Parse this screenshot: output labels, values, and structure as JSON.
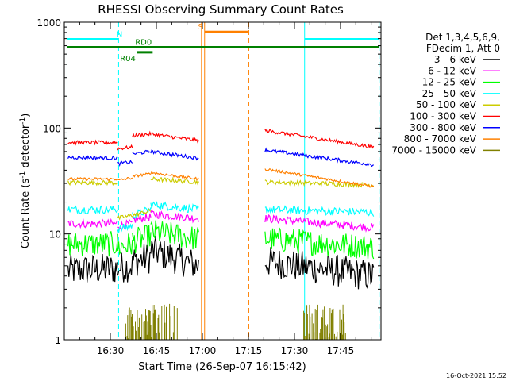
{
  "chart_data": {
    "type": "line",
    "title": "RHESSI Observing Summary Count Rates",
    "xlabel": "Start Time (26-Sep-07 16:15:42)",
    "ylabel_main": "Count Rate (s",
    "ylabel_sup1": "-1",
    "ylabel_mid": " detector",
    "ylabel_sup2": "-1",
    "ylabel_end": ")",
    "ylabel": "Count Rate (s-1 detector-1)",
    "y_scale": "log",
    "ylim": [
      1,
      1000
    ],
    "xlim_minutes": [
      16.25,
      17.97
    ],
    "x_ticks": [
      {
        "label": "16:30",
        "t": 16.5
      },
      {
        "label": "16:45",
        "t": 16.75
      },
      {
        "label": "17:00",
        "t": 17.0
      },
      {
        "label": "17:15",
        "t": 17.25
      },
      {
        "label": "17:30",
        "t": 17.5
      },
      {
        "label": "17:45",
        "t": 17.75
      }
    ],
    "y_ticks": [
      {
        "label": "1000",
        "v": 1000
      },
      {
        "label": "100",
        "v": 100
      },
      {
        "label": "10",
        "v": 10
      },
      {
        "label": "1",
        "v": 1
      }
    ],
    "legend": {
      "placement": "right",
      "header1": "Det 1,3,4,5,6,9,",
      "header2": "FDecim 1, Att 0",
      "entries": [
        {
          "label": "3 - 6 keV",
          "color": "#000000"
        },
        {
          "label": "6 - 12 keV",
          "color": "#ff00ff"
        },
        {
          "label": "12 - 25 keV",
          "color": "#00ff00"
        },
        {
          "label": "25 - 50 keV",
          "color": "#00ffff"
        },
        {
          "label": "50 - 100 keV",
          "color": "#cccc00"
        },
        {
          "label": "100 - 300 keV",
          "color": "#ff0000"
        },
        {
          "label": "300 - 800 keV",
          "color": "#0000ff"
        },
        {
          "label": "800 - 7000 keV",
          "color": "#ff8000"
        },
        {
          "label": "7000 - 15000 keV",
          "color": "#808000"
        }
      ]
    },
    "series": [
      {
        "name": "3 - 6 keV",
        "color": "#000000",
        "noise": 0.35,
        "segments": [
          {
            "t0": 16.27,
            "t1": 16.54,
            "v0": 4.5,
            "v1": 4.7
          },
          {
            "t0": 16.54,
            "t1": 16.62,
            "v0": 4.8,
            "v1": 5.0
          },
          {
            "t0": 16.62,
            "t1": 16.72,
            "v0": 5.5,
            "v1": 6.0
          },
          {
            "t0": 16.72,
            "t1": 16.98,
            "v0": 7.0,
            "v1": 5.0
          },
          {
            "t0": 17.34,
            "t1": 17.93,
            "v0": 5.5,
            "v1": 4.0
          }
        ]
      },
      {
        "name": "6 - 12 keV",
        "color": "#ff00ff",
        "noise": 0.09,
        "segments": [
          {
            "t0": 16.27,
            "t1": 16.54,
            "v0": 12.5,
            "v1": 12.5
          },
          {
            "t0": 16.54,
            "t1": 16.62,
            "v0": 12.0,
            "v1": 12.5
          },
          {
            "t0": 16.62,
            "t1": 16.72,
            "v0": 13.5,
            "v1": 14.5
          },
          {
            "t0": 16.72,
            "t1": 16.98,
            "v0": 15.5,
            "v1": 14.0
          },
          {
            "t0": 17.34,
            "t1": 17.93,
            "v0": 14.0,
            "v1": 11.5
          }
        ]
      },
      {
        "name": "12 - 25 keV",
        "color": "#00ff00",
        "noise": 0.28,
        "segments": [
          {
            "t0": 16.27,
            "t1": 16.54,
            "v0": 8.0,
            "v1": 8.0
          },
          {
            "t0": 16.54,
            "t1": 16.62,
            "v0": 7.5,
            "v1": 8.0
          },
          {
            "t0": 16.62,
            "t1": 16.72,
            "v0": 8.5,
            "v1": 9.5
          },
          {
            "t0": 16.72,
            "t1": 16.98,
            "v0": 10.5,
            "v1": 9.0
          },
          {
            "t0": 17.34,
            "t1": 17.93,
            "v0": 9.0,
            "v1": 7.5
          }
        ]
      },
      {
        "name": "25 - 50 keV",
        "color": "#00ffff",
        "noise": 0.09,
        "segments": [
          {
            "t0": 16.27,
            "t1": 16.54,
            "v0": 17.0,
            "v1": 17.0
          },
          {
            "t0": 16.54,
            "t1": 16.62,
            "v0": 11.0,
            "v1": 12.0
          },
          {
            "t0": 16.62,
            "t1": 16.72,
            "v0": 15.0,
            "v1": 17.0
          },
          {
            "t0": 16.72,
            "t1": 16.98,
            "v0": 19.0,
            "v1": 17.0
          },
          {
            "t0": 17.34,
            "t1": 17.93,
            "v0": 17.0,
            "v1": 16.0
          }
        ]
      },
      {
        "name": "50 - 100 keV",
        "color": "#cccc00",
        "noise": 0.05,
        "segments": [
          {
            "t0": 16.27,
            "t1": 16.54,
            "v0": 30.5,
            "v1": 30.5
          },
          {
            "t0": 16.54,
            "t1": 16.62,
            "v0": 14.0,
            "v1": 15.0
          },
          {
            "t0": 16.62,
            "t1": 16.72,
            "v0": 15.0,
            "v1": 16.5
          },
          {
            "t0": 16.72,
            "t1": 16.98,
            "v0": 33.0,
            "v1": 31.0
          },
          {
            "t0": 17.34,
            "t1": 17.93,
            "v0": 31.0,
            "v1": 29.0
          }
        ]
      },
      {
        "name": "100 - 300 keV",
        "color": "#ff0000",
        "noise": 0.04,
        "segments": [
          {
            "t0": 16.27,
            "t1": 16.54,
            "v0": 73.0,
            "v1": 73.0
          },
          {
            "t0": 16.54,
            "t1": 16.62,
            "v0": 64.0,
            "v1": 66.0
          },
          {
            "t0": 16.62,
            "t1": 16.72,
            "v0": 85.0,
            "v1": 88.0
          },
          {
            "t0": 16.72,
            "t1": 16.98,
            "v0": 88.0,
            "v1": 76.0
          },
          {
            "t0": 17.34,
            "t1": 17.93,
            "v0": 95.0,
            "v1": 66.0
          }
        ]
      },
      {
        "name": "300 - 800 keV",
        "color": "#0000ff",
        "noise": 0.04,
        "segments": [
          {
            "t0": 16.27,
            "t1": 16.54,
            "v0": 53.0,
            "v1": 52.0
          },
          {
            "t0": 16.54,
            "t1": 16.62,
            "v0": 46.0,
            "v1": 48.0
          },
          {
            "t0": 16.62,
            "t1": 16.72,
            "v0": 57.0,
            "v1": 60.0
          },
          {
            "t0": 16.72,
            "t1": 16.98,
            "v0": 60.0,
            "v1": 52.0
          },
          {
            "t0": 17.34,
            "t1": 17.93,
            "v0": 62.0,
            "v1": 45.0
          }
        ]
      },
      {
        "name": "800 - 7000 keV",
        "color": "#ff8000",
        "noise": 0.03,
        "segments": [
          {
            "t0": 16.27,
            "t1": 16.54,
            "v0": 33.0,
            "v1": 33.0
          },
          {
            "t0": 16.54,
            "t1": 16.62,
            "v0": 32.0,
            "v1": 34.0
          },
          {
            "t0": 16.62,
            "t1": 16.72,
            "v0": 35.0,
            "v1": 37.0
          },
          {
            "t0": 16.72,
            "t1": 16.98,
            "v0": 38.0,
            "v1": 33.0
          },
          {
            "t0": 17.34,
            "t1": 17.93,
            "v0": 41.0,
            "v1": 28.0
          }
        ]
      }
    ],
    "bursts": {
      "name": "7000 - 15000 keV",
      "color": "#808000",
      "windows": [
        {
          "t0": 16.58,
          "t1": 16.87,
          "peak": 2.2
        },
        {
          "t0": 17.55,
          "t1": 17.78,
          "peak": 2.2
        }
      ]
    },
    "vlines": [
      {
        "t": 16.265,
        "color": "#00ffff",
        "style": "solid"
      },
      {
        "t": 16.545,
        "color": "#00ffff",
        "style": "dashed"
      },
      {
        "t": 16.995,
        "color": "#ff8000",
        "style": "solid"
      },
      {
        "t": 17.012,
        "color": "#ff8000",
        "style": "solid"
      },
      {
        "t": 17.252,
        "color": "#ff8000",
        "style": "dashed"
      },
      {
        "t": 17.555,
        "color": "#00ffff",
        "style": "solid"
      },
      {
        "t": 17.96,
        "color": "#00ffff",
        "style": "dashed"
      }
    ],
    "flag_bars": [
      {
        "label": "N",
        "t0": 16.265,
        "t1": 16.545,
        "v": 690,
        "color": "#00ffff",
        "label_t": 16.55
      },
      {
        "label": "N",
        "t0": 17.555,
        "t1": 17.96,
        "v": 690,
        "color": "#00ffff",
        "label_t": null
      },
      {
        "label": "S",
        "t0": 17.012,
        "t1": 17.252,
        "v": 810,
        "color": "#ff8000",
        "label_t": 16.99
      },
      {
        "label": "RD0",
        "t0": 16.265,
        "t1": 17.96,
        "v": 580,
        "color": "#008000",
        "label_t": 16.68
      },
      {
        "label": "R04",
        "t0": 16.645,
        "t1": 16.73,
        "v": 520,
        "color": "#008000",
        "label_t": 16.595
      }
    ],
    "timestamp": "16-Oct-2021 15:52"
  }
}
